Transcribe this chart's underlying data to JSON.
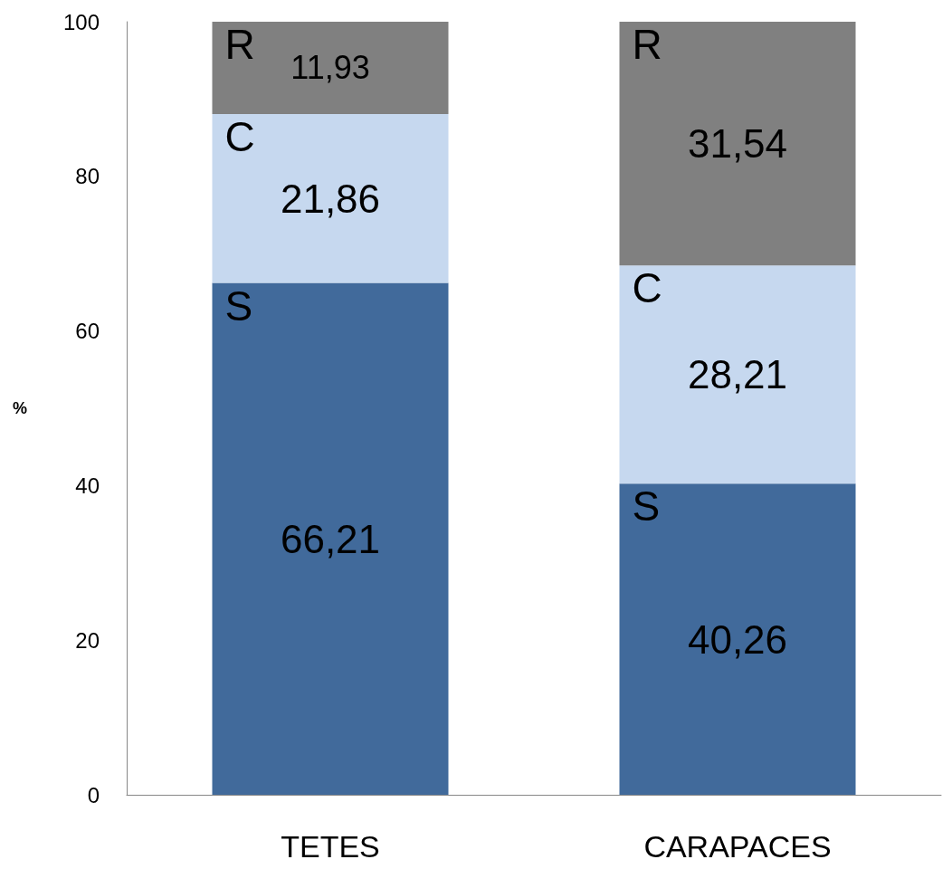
{
  "chart_data": {
    "type": "bar",
    "stacked": true,
    "ylabel": "%",
    "categories": [
      "TETES",
      "CARAPACES"
    ],
    "series": [
      {
        "name": "S",
        "color": "#416a9b",
        "values": [
          66.21,
          40.26
        ],
        "value_labels": [
          "66,21",
          "40,26"
        ]
      },
      {
        "name": "C",
        "color": "#c6d8ef",
        "values": [
          21.86,
          28.21
        ],
        "value_labels": [
          "21,86",
          "28,21"
        ]
      },
      {
        "name": "R",
        "color": "#808080",
        "values": [
          11.93,
          31.54
        ],
        "value_labels": [
          "11,93",
          "31,54"
        ]
      }
    ],
    "ylim": [
      0,
      100
    ],
    "yticks": [
      0,
      20,
      40,
      60,
      80,
      100
    ],
    "grid": false,
    "legend": false
  }
}
